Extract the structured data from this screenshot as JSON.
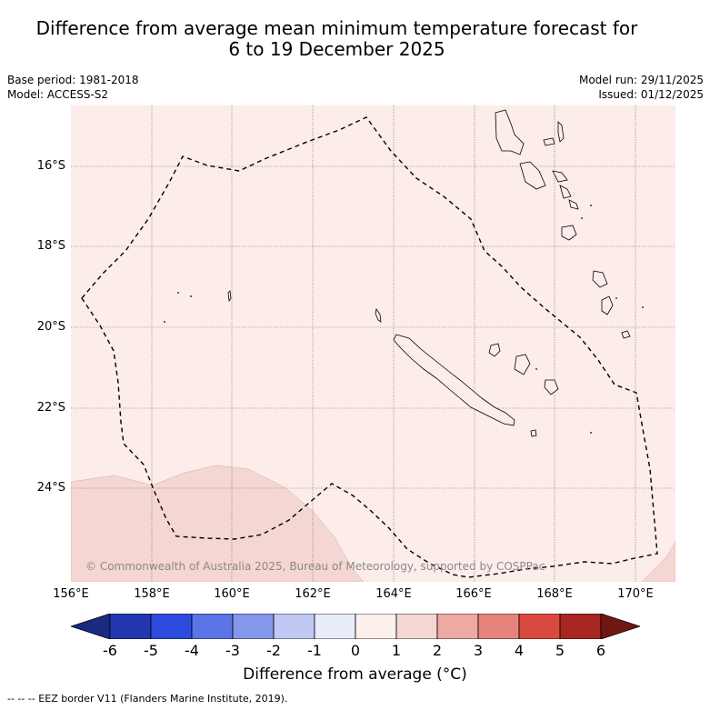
{
  "title": {
    "line1": "Difference from average mean minimum temperature forecast for",
    "line2": "6 to 19 December 2025"
  },
  "meta": {
    "base_period": "Base period: 1981-2018",
    "model": "Model: ACCESS-S2",
    "model_run": "Model run: 29/11/2025",
    "issued": "Issued: 01/12/2025"
  },
  "map": {
    "copyright": "© Commonwealth of Australia 2025, Bureau of Meteorology, supported by COSPPac",
    "latitude_labels": [
      "16°S",
      "18°S",
      "20°S",
      "22°S",
      "24°S"
    ],
    "longitude_labels": [
      "156°E",
      "158°E",
      "160°E",
      "162°E",
      "164°E",
      "166°E",
      "168°E",
      "170°E"
    ],
    "extent": {
      "lon_min": 156,
      "lon_max": 171,
      "lat_min": -26.5,
      "lat_max": -14.7
    },
    "dominant_anomaly_class": "0 to 1",
    "southwest_anomaly_class": "1 to 2",
    "colors": {
      "anomaly_0_1": "#fcecea",
      "anomaly_1_2": "#f4d6d2"
    }
  },
  "colorbar": {
    "title": "Difference from average (°C)",
    "tick_labels": [
      "-6",
      "-5",
      "-4",
      "-3",
      "-2",
      "-1",
      "0",
      "1",
      "2",
      "3",
      "4",
      "5",
      "6"
    ],
    "colors": [
      "#1a2a80",
      "#2237b0",
      "#2e4be0",
      "#5b74e6",
      "#8597ea",
      "#c0c8f4",
      "#e8ecfb",
      "#fdefec",
      "#f4d6d2",
      "#eea9a3",
      "#e5847d",
      "#db4a3f",
      "#a72622",
      "#701713"
    ]
  },
  "legend": {
    "eez": "-- -- -- EEZ border V11 (Flanders Marine Institute, 2019)."
  }
}
